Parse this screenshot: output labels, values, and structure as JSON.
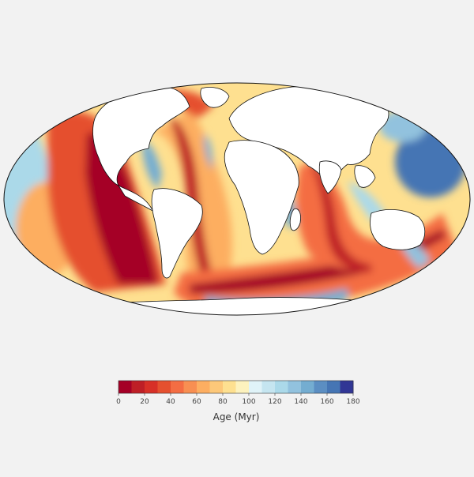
{
  "map": {
    "projection": "mollweide",
    "land_color": "#ffffff",
    "coast_color": "#111111"
  },
  "colorbar": {
    "label": "Age (Myr)",
    "ticks": [
      "0",
      "20",
      "40",
      "60",
      "80",
      "100",
      "120",
      "140",
      "160",
      "180"
    ],
    "range": [
      0,
      180
    ],
    "bins": 18,
    "colors": [
      "#a50026",
      "#be1f26",
      "#d73027",
      "#e5502f",
      "#f46d43",
      "#f88f52",
      "#fdae61",
      "#fdc879",
      "#fee090",
      "#fdf2be",
      "#e0f3f8",
      "#c5e5f0",
      "#abd9e9",
      "#92c2de",
      "#74add1",
      "#5b8ec2",
      "#4575b4",
      "#313695"
    ]
  }
}
